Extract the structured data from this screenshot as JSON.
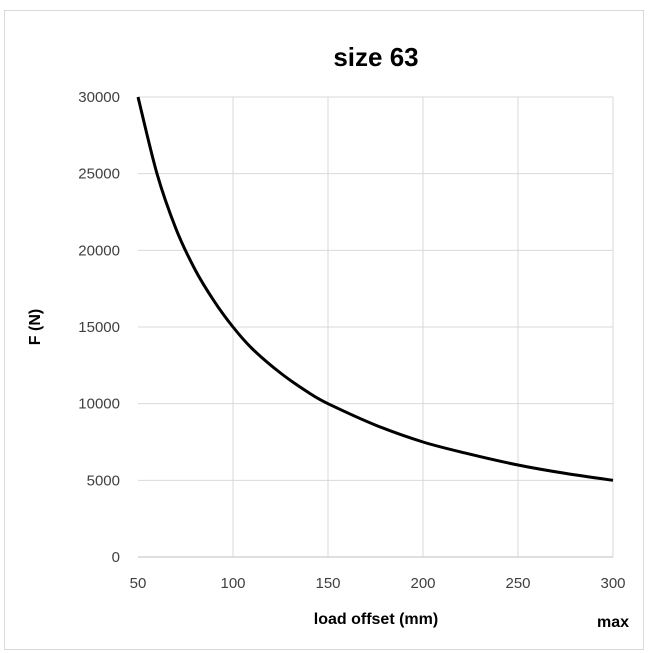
{
  "chart_data": {
    "type": "line",
    "title": "size 63",
    "xlabel": "load offset (mm)",
    "ylabel": "F (N)",
    "corner_label": "max",
    "xlim": [
      50,
      300
    ],
    "ylim": [
      0,
      30000
    ],
    "xticks": [
      "50",
      "100",
      "150",
      "200",
      "250",
      "300"
    ],
    "yticks": [
      "0",
      "5000",
      "10000",
      "15000",
      "20000",
      "25000",
      "30000"
    ],
    "grid": true,
    "legend": "none",
    "line_color": "#000000",
    "series": [
      {
        "x": [
          50,
          60,
          70,
          80,
          90,
          100,
          110,
          125,
          140,
          150,
          175,
          200,
          225,
          250,
          275,
          300
        ],
        "y": [
          30000,
          25000,
          21400,
          18750,
          16700,
          15000,
          13600,
          12000,
          10700,
          10000,
          8600,
          7500,
          6700,
          6000,
          5450,
          5000
        ]
      }
    ]
  }
}
